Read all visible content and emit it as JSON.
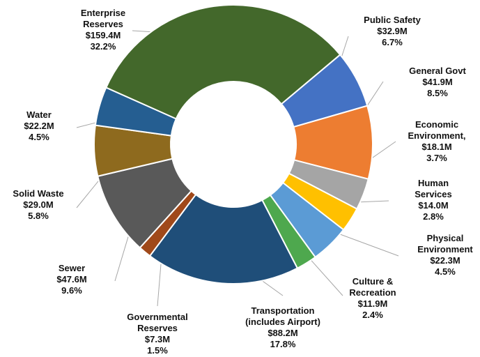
{
  "chart_data": {
    "type": "pie",
    "style": "donut",
    "units": "$M",
    "slices": [
      {
        "label": "Public Safety",
        "value_text": "$32.9M",
        "percent_text": "6.7%",
        "value": 32.9,
        "percent": 6.7,
        "color": "#4472C4"
      },
      {
        "label": "General Govt",
        "value_text": "$41.9M",
        "percent_text": "8.5%",
        "value": 41.9,
        "percent": 8.5,
        "color": "#ED7D31"
      },
      {
        "label": "Economic Environment,",
        "value_text": "$18.1M",
        "percent_text": "3.7%",
        "value": 18.1,
        "percent": 3.7,
        "color": "#A5A5A5"
      },
      {
        "label": "Human Services",
        "value_text": "$14.0M",
        "percent_text": "2.8%",
        "value": 14.0,
        "percent": 2.8,
        "color": "#FFC000"
      },
      {
        "label": "Physical Environment",
        "value_text": "$22.3M",
        "percent_text": "4.5%",
        "value": 22.3,
        "percent": 4.5,
        "color": "#5B9BD5"
      },
      {
        "label": "Culture & Recreation",
        "value_text": "$11.9M",
        "percent_text": "2.4%",
        "value": 11.9,
        "percent": 2.4,
        "color": "#4EA84E"
      },
      {
        "label": "Transportation (includes Airport)",
        "value_text": "$88.2M",
        "percent_text": "17.8%",
        "value": 88.2,
        "percent": 17.8,
        "color": "#1F4E79"
      },
      {
        "label": "Governmental Reserves",
        "value_text": "$7.3M",
        "percent_text": "1.5%",
        "value": 7.3,
        "percent": 1.5,
        "color": "#A0491A"
      },
      {
        "label": "Sewer",
        "value_text": "$47.6M",
        "percent_text": "9.6%",
        "value": 47.6,
        "percent": 9.6,
        "color": "#595959"
      },
      {
        "label": "Solid Waste",
        "value_text": "$29.0M",
        "percent_text": "5.8%",
        "value": 29.0,
        "percent": 5.8,
        "color": "#8E6A1E"
      },
      {
        "label": "Water",
        "value_text": "$22.2M",
        "percent_text": "4.5%",
        "value": 22.2,
        "percent": 4.5,
        "color": "#255E91"
      },
      {
        "label": "Enterprise Reserves",
        "value_text": "$159.4M",
        "percent_text": "32.2%",
        "value": 159.4,
        "percent": 32.2,
        "color": "#43682B"
      }
    ]
  }
}
